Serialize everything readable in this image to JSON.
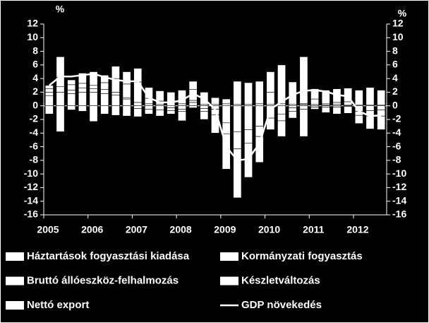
{
  "chart_data": {
    "type": "bar",
    "y_label": "%",
    "y2_label": "%",
    "categories": [
      "2005",
      null,
      null,
      null,
      "2006",
      null,
      null,
      null,
      "2007",
      null,
      null,
      null,
      "2008",
      null,
      null,
      null,
      "2009",
      null,
      null,
      null,
      "2010",
      null,
      null,
      null,
      "2011",
      null,
      null,
      null,
      "2012",
      null,
      null
    ],
    "series": [
      {
        "name": "Háztartások fogyasztási kiadása",
        "type": "bar",
        "color": "#ffffff",
        "values": [
          1.5,
          2.0,
          1.8,
          2.0,
          2.0,
          1.8,
          1.6,
          1.0,
          0.5,
          0.3,
          0.2,
          -0.3,
          0.3,
          0.5,
          0.2,
          -0.5,
          -2.5,
          -3.8,
          -3.5,
          -3.0,
          -1.8,
          -1.2,
          -0.3,
          0.2,
          0.2,
          0.1,
          0.2,
          0.1,
          -0.8,
          -0.7,
          -0.6
        ]
      },
      {
        "name": "Kormányzati fogyasztás",
        "type": "bar",
        "color": "#ffffff",
        "values": [
          0.5,
          0.8,
          0.5,
          0.6,
          0.5,
          0.6,
          0.4,
          0.2,
          -0.4,
          -0.5,
          -0.6,
          -0.4,
          -0.5,
          -0.3,
          -0.4,
          0.2,
          0.3,
          0.2,
          0.2,
          0.3,
          0.2,
          0.3,
          0.2,
          0.1,
          -0.2,
          -0.2,
          -0.2,
          -0.1,
          0.1,
          0.1,
          0.1
        ]
      },
      {
        "name": "Bruttó állóeszköz-felhalmozás",
        "type": "bar",
        "color": "#ffffff",
        "values": [
          0.5,
          1.4,
          0.8,
          0.7,
          0.5,
          -1.2,
          -1.4,
          -1.5,
          -1.2,
          -0.7,
          -0.9,
          -0.5,
          -0.3,
          0.3,
          -0.4,
          -0.8,
          -1.6,
          -2.5,
          -2.0,
          -1.5,
          -1.7,
          -1.0,
          -0.5,
          -0.5,
          -0.3,
          -0.8,
          -1.0,
          -1.0,
          -0.6,
          -0.8,
          -0.9
        ]
      },
      {
        "name": "Készletváltozás",
        "type": "bar",
        "color": "#ffffff",
        "values": [
          -1.2,
          -3.8,
          -0.6,
          -0.8,
          -2.3,
          1.0,
          2.0,
          2.0,
          3.0,
          0.8,
          0.5,
          0.5,
          -1.4,
          1.6,
          -1.2,
          -2.7,
          -5.2,
          -7.2,
          -5.0,
          -3.8,
          1.8,
          5.7,
          3.3,
          -4.0,
          0.8,
          0.2,
          0.3,
          0.5,
          -1.2,
          -1.9,
          -2.0
        ]
      },
      {
        "name": "Nettó export",
        "type": "bar",
        "color": "#ffffff",
        "values": [
          0.5,
          3.0,
          0.7,
          1.5,
          2.0,
          1.1,
          1.8,
          1.8,
          2.0,
          1.6,
          1.5,
          1.5,
          2.0,
          1.2,
          1.8,
          1.0,
          0.7,
          3.4,
          3.2,
          3.3,
          3.0,
          -2.3,
          -1.0,
          6.9,
          1.5,
          2.0,
          2.0,
          2.0,
          2.2,
          2.6,
          2.2
        ]
      },
      {
        "name": "GDP növekedés",
        "type": "line",
        "color": "#ffffff",
        "values": [
          3.0,
          4.3,
          4.3,
          4.5,
          4.7,
          4.2,
          3.8,
          3.6,
          3.6,
          1.2,
          0.5,
          0.5,
          0.8,
          1.8,
          1.0,
          -0.5,
          -6.0,
          -8.0,
          -7.8,
          -5.5,
          -0.5,
          0.6,
          1.6,
          2.2,
          2.3,
          2.1,
          1.6,
          1.4,
          -0.8,
          -1.5,
          -1.4
        ]
      }
    ],
    "ylim": [
      -16,
      12
    ],
    "yticks": [
      -16,
      -14,
      -12,
      -10,
      -8,
      -6,
      -4,
      -2,
      0,
      2,
      4,
      6,
      8,
      10,
      12
    ],
    "y2lim": [
      -16,
      12
    ],
    "y2ticks": [
      -16,
      -14,
      -12,
      -10,
      -8,
      -6,
      -4,
      -2,
      0,
      2,
      4,
      6,
      8,
      10,
      12
    ],
    "background": "#000000"
  }
}
